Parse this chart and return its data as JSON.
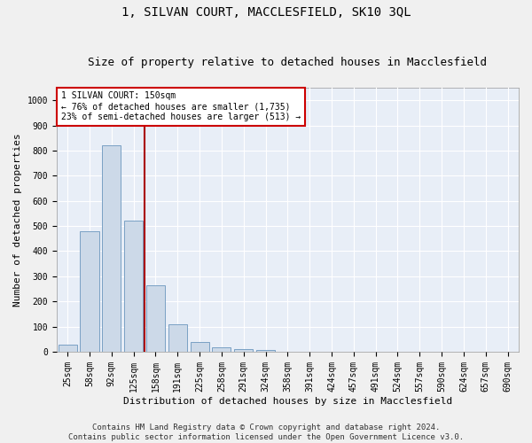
{
  "title": "1, SILVAN COURT, MACCLESFIELD, SK10 3QL",
  "subtitle": "Size of property relative to detached houses in Macclesfield",
  "xlabel": "Distribution of detached houses by size in Macclesfield",
  "ylabel": "Number of detached properties",
  "bar_color": "#ccd9e8",
  "bar_edge_color": "#7aa0c4",
  "vline_color": "#aa0000",
  "categories": [
    "25sqm",
    "58sqm",
    "92sqm",
    "125sqm",
    "158sqm",
    "191sqm",
    "225sqm",
    "258sqm",
    "291sqm",
    "324sqm",
    "358sqm",
    "391sqm",
    "424sqm",
    "457sqm",
    "491sqm",
    "524sqm",
    "557sqm",
    "590sqm",
    "624sqm",
    "657sqm",
    "690sqm"
  ],
  "values": [
    28,
    480,
    820,
    520,
    265,
    110,
    38,
    18,
    12,
    8,
    0,
    0,
    0,
    0,
    0,
    0,
    0,
    0,
    0,
    0,
    0
  ],
  "ylim": [
    0,
    1050
  ],
  "yticks": [
    0,
    100,
    200,
    300,
    400,
    500,
    600,
    700,
    800,
    900,
    1000
  ],
  "annotation_title": "1 SILVAN COURT: 150sqm",
  "annotation_line1": "← 76% of detached houses are smaller (1,735)",
  "annotation_line2": "23% of semi-detached houses are larger (513) →",
  "annotation_box_color": "#ffffff",
  "annotation_box_edge_color": "#cc0000",
  "footer1": "Contains HM Land Registry data © Crown copyright and database right 2024.",
  "footer2": "Contains public sector information licensed under the Open Government Licence v3.0.",
  "background_color": "#e8eef7",
  "fig_background_color": "#f0f0f0",
  "grid_color": "#ffffff",
  "title_fontsize": 10,
  "subtitle_fontsize": 9,
  "axis_label_fontsize": 8,
  "tick_fontsize": 7,
  "annotation_fontsize": 7,
  "footer_fontsize": 6.5
}
